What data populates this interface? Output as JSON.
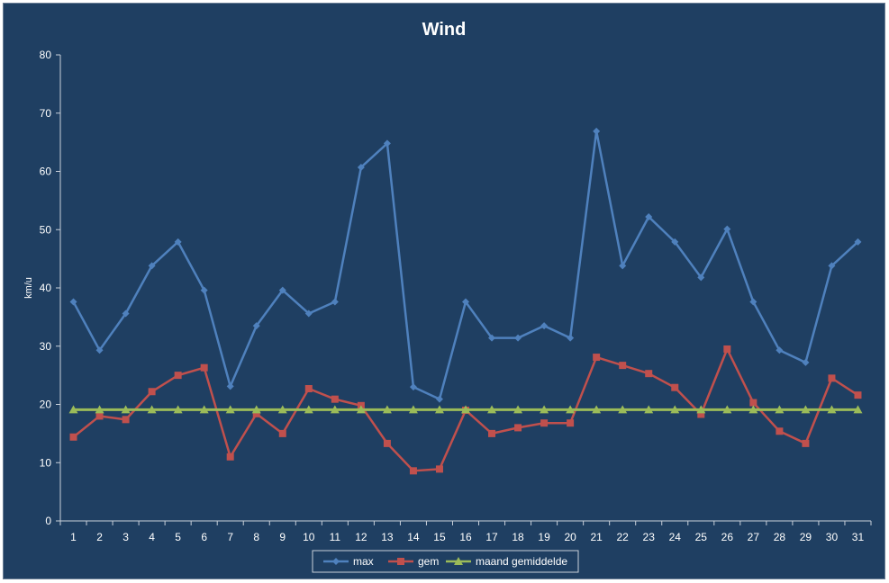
{
  "chart_data": {
    "type": "line",
    "title": "Wind",
    "xlabel": "",
    "ylabel": "km/u",
    "ylim": [
      0,
      80
    ],
    "yticks": [
      0,
      10,
      20,
      30,
      40,
      50,
      60,
      70,
      80
    ],
    "categories": [
      "1",
      "2",
      "3",
      "4",
      "5",
      "6",
      "7",
      "8",
      "9",
      "10",
      "11",
      "12",
      "13",
      "14",
      "15",
      "16",
      "17",
      "18",
      "19",
      "20",
      "21",
      "22",
      "23",
      "24",
      "25",
      "26",
      "27",
      "28",
      "29",
      "30",
      "31"
    ],
    "grid": false,
    "legend_position": "bottom",
    "series": [
      {
        "name": "max",
        "color": "#4f81bd",
        "marker": "diamond",
        "values": [
          37.6,
          29.3,
          35.6,
          43.8,
          47.9,
          39.6,
          23.1,
          33.5,
          39.6,
          35.6,
          37.6,
          60.7,
          64.8,
          23.0,
          20.9,
          37.6,
          31.4,
          31.4,
          33.5,
          31.4,
          66.9,
          43.8,
          52.2,
          47.9,
          41.8,
          50.1,
          37.6,
          29.3,
          27.2,
          43.8,
          47.9
        ]
      },
      {
        "name": "gem",
        "color": "#c0504d",
        "marker": "square",
        "values": [
          14.4,
          18.0,
          17.4,
          22.2,
          25.0,
          26.3,
          11.0,
          18.4,
          15.0,
          22.7,
          20.9,
          19.8,
          13.3,
          8.6,
          8.9,
          19.0,
          15.0,
          16.0,
          16.8,
          16.8,
          28.1,
          26.7,
          25.3,
          22.9,
          18.3,
          29.5,
          20.3,
          15.4,
          13.3,
          24.5,
          21.6
        ]
      },
      {
        "name": "maand gemiddelde",
        "color": "#9bbb59",
        "marker": "triangle",
        "values": [
          19.1,
          19.1,
          19.1,
          19.1,
          19.1,
          19.1,
          19.1,
          19.1,
          19.1,
          19.1,
          19.1,
          19.1,
          19.1,
          19.1,
          19.1,
          19.1,
          19.1,
          19.1,
          19.1,
          19.1,
          19.1,
          19.1,
          19.1,
          19.1,
          19.1,
          19.1,
          19.1,
          19.1,
          19.1,
          19.1,
          19.1
        ]
      }
    ]
  }
}
